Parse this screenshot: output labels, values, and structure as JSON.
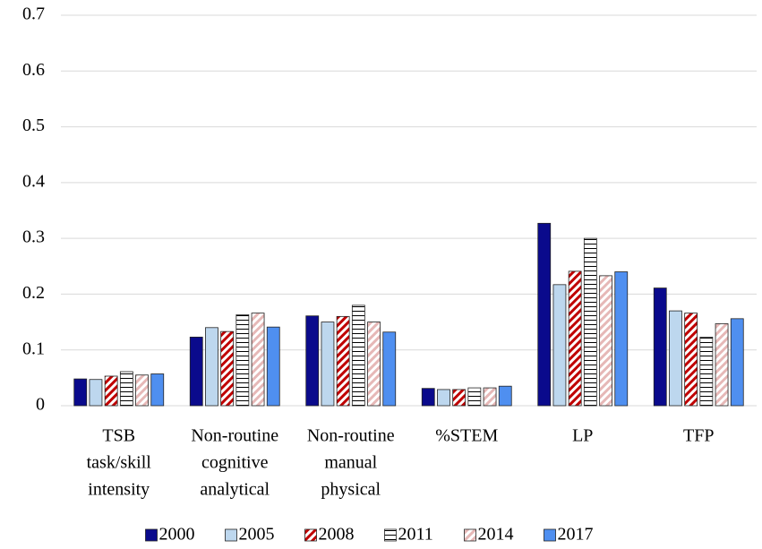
{
  "chart_data": {
    "type": "bar",
    "categories": [
      [
        "TSB",
        "task/skill",
        "intensity"
      ],
      [
        "Non-routine",
        "cognitive",
        "analytical"
      ],
      [
        "Non-routine",
        "manual",
        "physical"
      ],
      [
        "%STEM"
      ],
      [
        "LP"
      ],
      [
        "TFP"
      ]
    ],
    "series": [
      {
        "name": "2000",
        "color": "#0a0a8c",
        "pattern": "solid",
        "values": [
          0.048,
          0.123,
          0.161,
          0.031,
          0.327,
          0.211
        ]
      },
      {
        "name": "2005",
        "color": "#bdd7ee",
        "pattern": "solid",
        "values": [
          0.047,
          0.14,
          0.15,
          0.029,
          0.217,
          0.17
        ]
      },
      {
        "name": "2008",
        "color": "#c00000",
        "pattern": "diagonal",
        "values": [
          0.053,
          0.133,
          0.16,
          0.029,
          0.241,
          0.166
        ]
      },
      {
        "name": "2011",
        "color": "#000000",
        "pattern": "horizontal",
        "values": [
          0.061,
          0.163,
          0.18,
          0.032,
          0.3,
          0.123
        ]
      },
      {
        "name": "2014",
        "color": "#e6b8b7",
        "pattern": "diagonal",
        "values": [
          0.055,
          0.166,
          0.15,
          0.032,
          0.233,
          0.147
        ]
      },
      {
        "name": "2017",
        "color": "#4f8ff0",
        "pattern": "solid",
        "values": [
          0.057,
          0.141,
          0.132,
          0.035,
          0.24,
          0.156
        ]
      }
    ],
    "ylim": [
      0,
      0.7
    ],
    "yticks": [
      0,
      0.1,
      0.2,
      0.3,
      0.4,
      0.5,
      0.6,
      0.7
    ],
    "grid": true,
    "legend": "bottom"
  }
}
